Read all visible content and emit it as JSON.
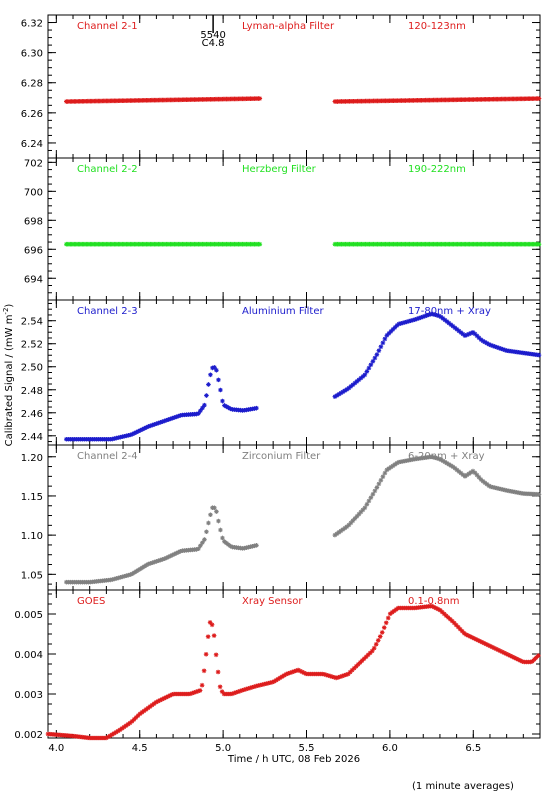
{
  "chart_data": [
    {
      "type": "scatter",
      "id": "p1",
      "headers": [
        "Channel 2-1",
        "Lyman-alpha Filter",
        "120-123nm"
      ],
      "color": "#dd1c1c",
      "ylim": [
        6.23,
        6.325
      ],
      "yticks": [
        6.24,
        6.26,
        6.28,
        6.3,
        6.32
      ],
      "ytick_labels": [
        "6.24",
        "6.26",
        "6.28",
        "6.30",
        "6.32"
      ],
      "event_marker": {
        "x": 4.94,
        "labels": [
          "5540",
          "C4.8"
        ]
      },
      "segments": [
        {
          "x": [
            4.06,
            5.22
          ],
          "y": [
            6.2675,
            6.2695
          ]
        },
        {
          "x": [
            5.67,
            6.9
          ],
          "y": [
            6.2675,
            6.2695
          ]
        }
      ]
    },
    {
      "type": "scatter",
      "id": "p2",
      "headers": [
        "Channel 2-2",
        "Herzberg Filter",
        "190-222nm"
      ],
      "color": "#22e022",
      "ylim": [
        692.5,
        702.3
      ],
      "yticks": [
        694,
        696,
        698,
        700,
        702
      ],
      "ytick_labels": [
        "694",
        "696",
        "698",
        "700",
        "702"
      ],
      "segments": [
        {
          "x": [
            4.06,
            5.22
          ],
          "y": [
            696.35,
            696.35
          ]
        },
        {
          "x": [
            5.67,
            6.9
          ],
          "y": [
            696.35,
            696.35
          ]
        }
      ]
    },
    {
      "type": "scatter",
      "id": "p3",
      "headers": [
        "Channel 2-3",
        "Aluminium Filter",
        "17-80nm + Xray"
      ],
      "color": "#1c1ccc",
      "ylim": [
        2.432,
        2.558
      ],
      "yticks": [
        2.44,
        2.46,
        2.48,
        2.5,
        2.52,
        2.54
      ],
      "ytick_labels": [
        "2.44",
        "2.46",
        "2.48",
        "2.50",
        "2.52",
        "2.54"
      ],
      "series": [
        {
          "x": [
            4.06,
            4.2,
            4.33,
            4.45,
            4.55,
            4.65,
            4.75,
            4.85,
            4.89,
            4.92,
            4.94,
            4.96,
            4.98,
            5.0,
            5.05,
            5.12,
            5.2
          ],
          "y": [
            2.437,
            2.437,
            2.437,
            2.441,
            2.448,
            2.453,
            2.458,
            2.459,
            2.467,
            2.491,
            2.501,
            2.497,
            2.483,
            2.467,
            2.463,
            2.462,
            2.464
          ]
        },
        {
          "x": [
            5.67,
            5.75,
            5.85,
            5.92,
            5.98,
            6.05,
            6.15,
            6.25,
            6.3,
            6.38,
            6.45,
            6.5,
            6.55,
            6.6,
            6.7,
            6.8,
            6.9
          ],
          "y": [
            2.474,
            2.481,
            2.493,
            2.51,
            2.527,
            2.537,
            2.541,
            2.546,
            2.544,
            2.535,
            2.527,
            2.53,
            2.523,
            2.519,
            2.514,
            2.512,
            2.51
          ]
        }
      ]
    },
    {
      "type": "scatter",
      "id": "p4",
      "headers": [
        "Channel 2-4",
        "Zirconium Filter",
        "6-20nm + Xray"
      ],
      "color": "#808080",
      "ylim": [
        1.03,
        1.215
      ],
      "yticks": [
        1.05,
        1.1,
        1.15,
        1.2
      ],
      "ytick_labels": [
        "1.05",
        "1.10",
        "1.15",
        "1.20"
      ],
      "series": [
        {
          "x": [
            4.06,
            4.2,
            4.33,
            4.45,
            4.55,
            4.65,
            4.75,
            4.85,
            4.89,
            4.92,
            4.94,
            4.96,
            4.98,
            5.0,
            5.05,
            5.12,
            5.2
          ],
          "y": [
            1.04,
            1.04,
            1.043,
            1.05,
            1.063,
            1.07,
            1.08,
            1.082,
            1.095,
            1.123,
            1.138,
            1.13,
            1.11,
            1.093,
            1.085,
            1.083,
            1.087
          ]
        },
        {
          "x": [
            5.67,
            5.75,
            5.85,
            5.92,
            5.98,
            6.05,
            6.15,
            6.25,
            6.3,
            6.38,
            6.45,
            6.5,
            6.55,
            6.6,
            6.7,
            6.8,
            6.9
          ],
          "y": [
            1.1,
            1.112,
            1.135,
            1.16,
            1.183,
            1.193,
            1.197,
            1.2,
            1.197,
            1.187,
            1.175,
            1.182,
            1.17,
            1.162,
            1.157,
            1.153,
            1.152
          ]
        }
      ]
    },
    {
      "type": "scatter",
      "id": "p5",
      "headers": [
        "GOES",
        "Xray Sensor",
        "0.1-0.8nm"
      ],
      "color": "#dd1c1c",
      "ylim": [
        0.0019,
        0.0056
      ],
      "yticks": [
        0.002,
        0.003,
        0.004,
        0.005
      ],
      "ytick_labels": [
        "0.002",
        "0.003",
        "0.004",
        "0.005"
      ],
      "series": [
        {
          "x": [
            3.95,
            4.1,
            4.2,
            4.3,
            4.38,
            4.45,
            4.5,
            4.6,
            4.7,
            4.8,
            4.87,
            4.89,
            4.92,
            4.94,
            4.96,
            4.98,
            5.0,
            5.05,
            5.12,
            5.2,
            5.3,
            5.38,
            5.45,
            5.5,
            5.6,
            5.68,
            5.75,
            5.8,
            5.9,
            5.95,
            6.0,
            6.05,
            6.15,
            6.25,
            6.3,
            6.38,
            6.45,
            6.5,
            6.6,
            6.7,
            6.8,
            6.85,
            6.9
          ],
          "y": [
            0.002,
            0.00195,
            0.0019,
            0.0019,
            0.0021,
            0.0023,
            0.0025,
            0.0028,
            0.003,
            0.003,
            0.0031,
            0.0037,
            0.0048,
            0.0047,
            0.0039,
            0.0032,
            0.003,
            0.003,
            0.0031,
            0.0032,
            0.0033,
            0.0035,
            0.0036,
            0.0035,
            0.0035,
            0.0034,
            0.0035,
            0.0037,
            0.0041,
            0.0045,
            0.005,
            0.00515,
            0.00515,
            0.0052,
            0.0051,
            0.0048,
            0.0045,
            0.0044,
            0.0042,
            0.004,
            0.0038,
            0.0038,
            0.004
          ]
        }
      ]
    }
  ],
  "xlim": [
    3.95,
    6.9
  ],
  "xticks": [
    4.0,
    4.5,
    5.0,
    5.5,
    6.0,
    6.5
  ],
  "xtick_labels": [
    "4.0",
    "4.5",
    "5.0",
    "5.5",
    "6.0",
    "6.5"
  ],
  "xlabel": "Time / h UTC, 08 Feb 2026",
  "ylabel": "Calibrated Signal / (mW m",
  "ylabel_sup": "-2",
  "ylabel_end": ")",
  "note": "(1 minute averages)"
}
